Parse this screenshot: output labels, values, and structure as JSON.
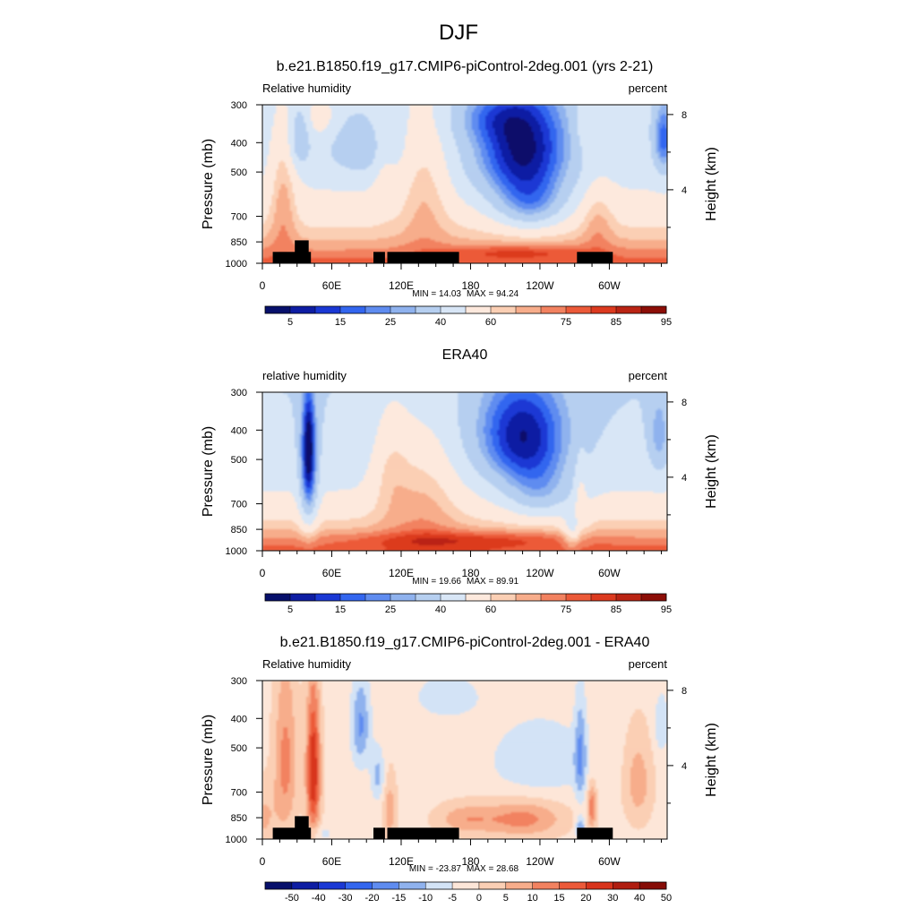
{
  "figure": {
    "title": "DJF"
  },
  "axis_common": {
    "x_ticks": [
      {
        "lon": 0,
        "label": "0"
      },
      {
        "lon": 60,
        "label": "60E"
      },
      {
        "lon": 120,
        "label": "120E"
      },
      {
        "lon": 180,
        "label": "180"
      },
      {
        "lon": 240,
        "label": "120W"
      },
      {
        "lon": 300,
        "label": "60W"
      }
    ],
    "x_range": [
      0,
      350
    ],
    "y_ticks": [
      300,
      400,
      500,
      700,
      850,
      1000
    ],
    "y_range": [
      1000,
      300
    ],
    "y_scale": "log",
    "ylabel": "Pressure (mb)",
    "right_ticks": [
      {
        "km": 8,
        "label": "8"
      },
      {
        "km": 4,
        "label": "4"
      }
    ],
    "right_label": "Height (km)"
  },
  "chart_data": [
    {
      "type": "heatmap",
      "title": "b.e21.B1850.f19_g17.CMIP6-piControl-2deg.001 (yrs 2-21)",
      "left_label": "Relative humidity",
      "right_label": "percent",
      "min_label": "MIN =  14.03",
      "max_label": "MAX =  94.24",
      "min": 14.03,
      "max": 94.24,
      "colorbar": {
        "levels": [
          5,
          10,
          15,
          20,
          25,
          30,
          40,
          50,
          60,
          65,
          70,
          75,
          80,
          85,
          90,
          95
        ],
        "labels": [
          {
            "index": 0,
            "text": "5"
          },
          {
            "index": 2,
            "text": "15"
          },
          {
            "index": 4,
            "text": "25"
          },
          {
            "index": 6,
            "text": "40"
          },
          {
            "index": 8,
            "text": "60"
          },
          {
            "index": 11,
            "text": "75"
          },
          {
            "index": 13,
            "text": "85"
          },
          {
            "index": 15,
            "text": "95"
          }
        ]
      },
      "topography": true
    },
    {
      "type": "heatmap",
      "title": "ERA40",
      "left_label": "relative humidity",
      "right_label": "percent",
      "min_label": "MIN =  19.66",
      "max_label": "MAX =  89.91",
      "min": 19.66,
      "max": 89.91,
      "colorbar": {
        "levels": [
          5,
          10,
          15,
          20,
          25,
          30,
          40,
          50,
          60,
          65,
          70,
          75,
          80,
          85,
          90,
          95
        ],
        "labels": [
          {
            "index": 0,
            "text": "5"
          },
          {
            "index": 2,
            "text": "15"
          },
          {
            "index": 4,
            "text": "25"
          },
          {
            "index": 6,
            "text": "40"
          },
          {
            "index": 8,
            "text": "60"
          },
          {
            "index": 11,
            "text": "75"
          },
          {
            "index": 13,
            "text": "85"
          },
          {
            "index": 15,
            "text": "95"
          }
        ]
      },
      "topography": false
    },
    {
      "type": "heatmap",
      "title": "b.e21.B1850.f19_g17.CMIP6-piControl-2deg.001 - ERA40",
      "left_label": "Relative humidity",
      "right_label": "percent",
      "min_label": "MIN = -23.87",
      "max_label": "MAX =  28.68",
      "min": -23.87,
      "max": 28.68,
      "colorbar": {
        "levels": [
          -50,
          -40,
          -30,
          -20,
          -15,
          -10,
          -5,
          0,
          5,
          10,
          15,
          20,
          30,
          40,
          50
        ],
        "labels": [
          {
            "index": 0,
            "text": "-50"
          },
          {
            "index": 1,
            "text": "-40"
          },
          {
            "index": 2,
            "text": "-30"
          },
          {
            "index": 3,
            "text": "-20"
          },
          {
            "index": 4,
            "text": "-15"
          },
          {
            "index": 5,
            "text": "-10"
          },
          {
            "index": 6,
            "text": "-5"
          },
          {
            "index": 7,
            "text": "0"
          },
          {
            "index": 8,
            "text": "5"
          },
          {
            "index": 9,
            "text": "10"
          },
          {
            "index": 10,
            "text": "15"
          },
          {
            "index": 11,
            "text": "20"
          },
          {
            "index": 12,
            "text": "30"
          },
          {
            "index": 13,
            "text": "40"
          },
          {
            "index": 14,
            "text": "50"
          }
        ]
      },
      "topography": true
    }
  ]
}
